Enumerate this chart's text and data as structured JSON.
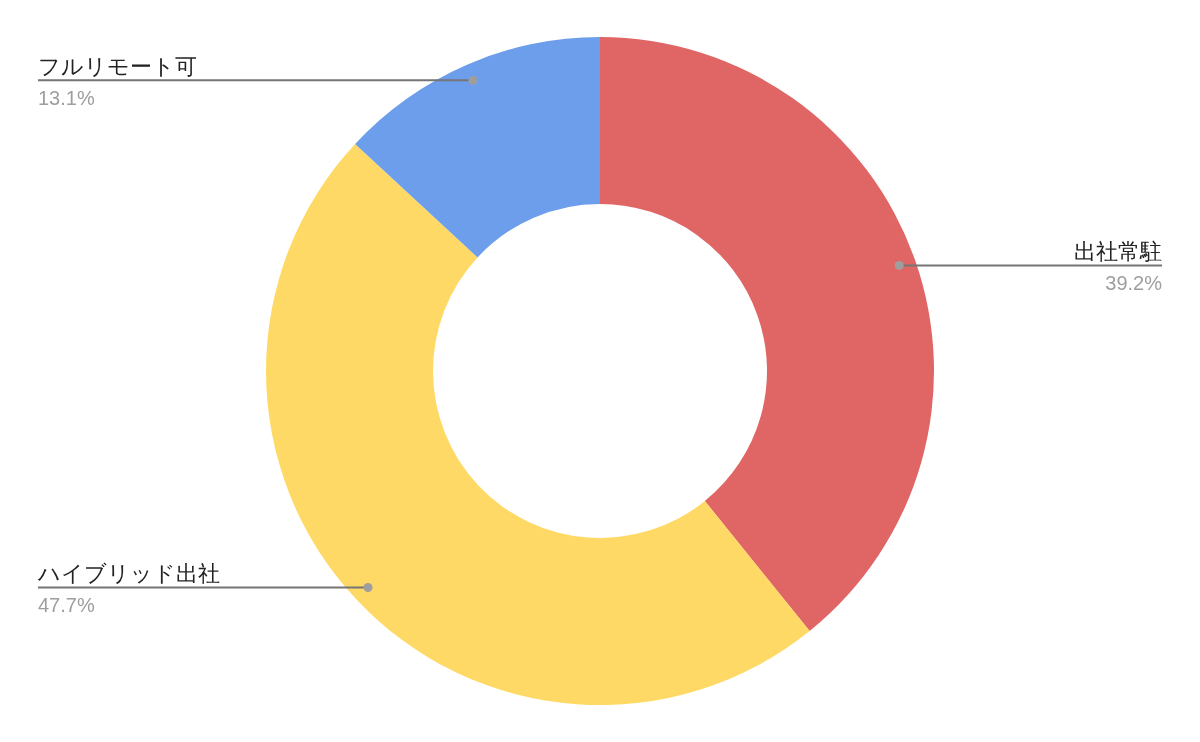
{
  "chart_data": {
    "type": "donut",
    "categories": [
      "出社常駐",
      "ハイブリッド出社",
      "フルリモート可"
    ],
    "values": [
      39.2,
      47.7,
      13.1
    ],
    "value_labels": [
      "39.2%",
      "47.7%",
      "13.1%"
    ],
    "colors": [
      "#e06666",
      "#ffd966",
      "#6d9eeb"
    ]
  }
}
